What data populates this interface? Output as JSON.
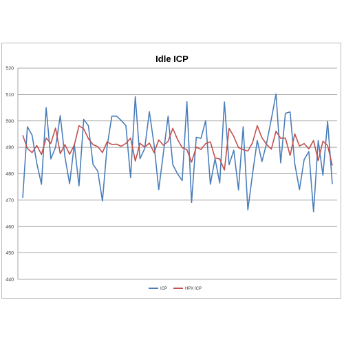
{
  "chart_data": {
    "type": "line",
    "title": "Idle ICP",
    "xlabel": "",
    "ylabel": "",
    "ylim": [
      440,
      520
    ],
    "yticks": [
      440,
      450,
      460,
      470,
      480,
      490,
      500,
      510,
      520
    ],
    "grid": true,
    "legend_position": "bottom",
    "series": [
      {
        "name": "ICP",
        "color": "#4a7ebb",
        "values": [
          470.8,
          497.8,
          494.6,
          484.0,
          476.0,
          505.0,
          485.6,
          490.0,
          502.0,
          486.4,
          476.2,
          491.2,
          475.4,
          500.6,
          498.2,
          483.5,
          481.0,
          469.7,
          490.5,
          501.8,
          501.8,
          500.2,
          498.2,
          478.5,
          509.2,
          485.7,
          489.5,
          503.5,
          491.0,
          474.0,
          488.0,
          501.8,
          483.4,
          480.0,
          477.4,
          507.3,
          469.1,
          493.8,
          493.4,
          500.1,
          476.0,
          485.7,
          476.5,
          507.2,
          483.4,
          488.9,
          473.9,
          497.8,
          466.3,
          480.0,
          492.6,
          484.6,
          491.6,
          500.7,
          510.2,
          484.1,
          502.9,
          503.4,
          483.8,
          474.0,
          485.4,
          488.4,
          465.6,
          492.6,
          479.4,
          499.9,
          476.1
        ]
      },
      {
        "name": "HPX ICP",
        "color": "#c0504d",
        "values": [
          494.6,
          489.6,
          488.0,
          490.7,
          487.3,
          493.5,
          491.5,
          497.3,
          487.6,
          491.0,
          487.4,
          490.8,
          498.2,
          497.0,
          493.3,
          491.0,
          490.3,
          488.0,
          492.1,
          491.1,
          491.2,
          490.4,
          491.5,
          493.5,
          484.8,
          491.5,
          490.1,
          491.6,
          488.0,
          492.8,
          490.8,
          492.3,
          497.2,
          493.0,
          489.9,
          489.1,
          484.4,
          490.1,
          489.2,
          491.4,
          492.1,
          486.0,
          485.6,
          481.4,
          497.2,
          494.1,
          489.9,
          489.1,
          488.6,
          491.8,
          498.2,
          493.6,
          491.1,
          489.3,
          496.1,
          493.4,
          493.5,
          486.9,
          495.1,
          490.5,
          491.4,
          489.4,
          492.6,
          485.0,
          492.3,
          490.7,
          483.1
        ]
      }
    ]
  }
}
